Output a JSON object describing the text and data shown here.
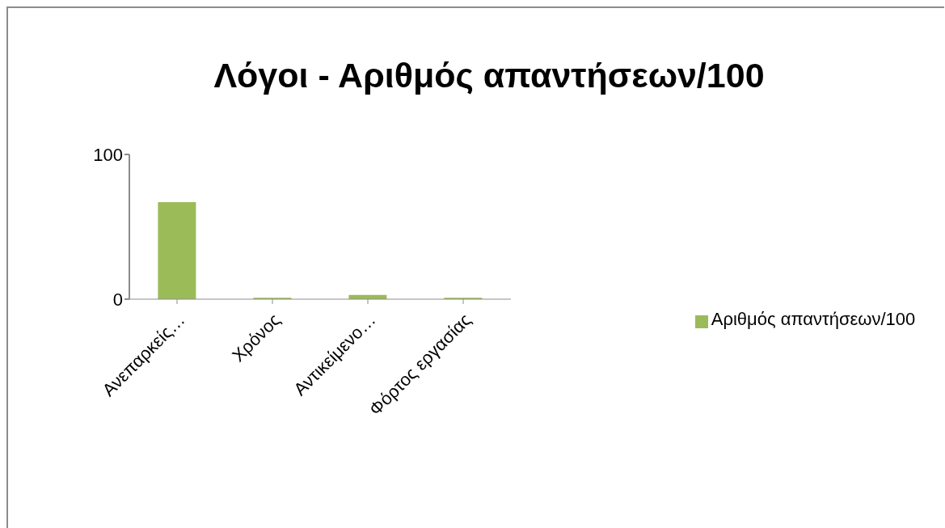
{
  "chart_data": {
    "type": "bar",
    "title": "Λόγοι - Αριθμός απαντήσεων/100",
    "categories": [
      "Ανεπαρκείς…",
      "Χρόνος",
      "Αντικείμενο…",
      "Φόρτος εργασίας"
    ],
    "series": [
      {
        "name": "Αριθμός απαντήσεων/100",
        "color": "#9bbb59",
        "values": [
          67,
          1,
          3,
          1
        ]
      }
    ],
    "ylim": [
      0,
      100
    ],
    "yticks": [
      0,
      100
    ],
    "legend": "right"
  }
}
